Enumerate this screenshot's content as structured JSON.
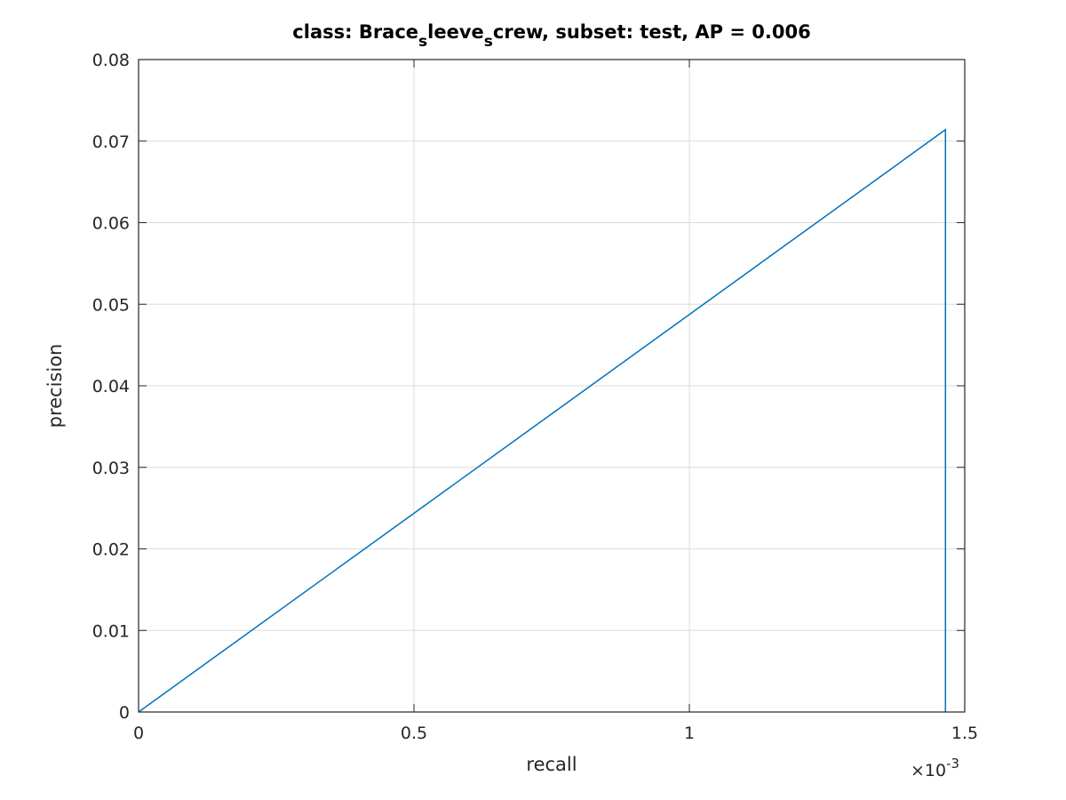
{
  "chart_data": {
    "type": "line",
    "title": {
      "prefix": "class: Brace",
      "sub1": "s",
      "mid": "leeve",
      "sub2": "s",
      "suffix": "crew, subset: test, AP = 0.006"
    },
    "xlabel": "recall",
    "ylabel": "precision",
    "x_exponent_label": "×10",
    "x_exponent_power": "-3",
    "xlim": [
      0,
      1.5
    ],
    "ylim": [
      0,
      0.08
    ],
    "x_scale_note": "x values in units of 10^-3",
    "xticks": [
      0,
      0.5,
      1,
      1.5
    ],
    "xtick_labels": [
      "0",
      "0.5",
      "1",
      "1.5"
    ],
    "yticks": [
      0,
      0.01,
      0.02,
      0.03,
      0.04,
      0.05,
      0.06,
      0.07,
      0.08
    ],
    "ytick_labels": [
      "0",
      "0.01",
      "0.02",
      "0.03",
      "0.04",
      "0.05",
      "0.06",
      "0.07",
      "0.08"
    ],
    "grid": true,
    "series": [
      {
        "color": "#0072BD",
        "x": [
          0,
          1.465,
          1.465
        ],
        "y": [
          0,
          0.0714,
          0
        ]
      }
    ]
  }
}
